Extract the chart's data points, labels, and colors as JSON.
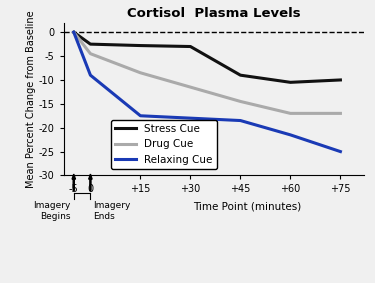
{
  "title": "Cortisol  Plasma Levels",
  "xlabel": "Time Point (minutes)",
  "ylabel": "Mean Percent Change from Baseline",
  "x_values": [
    -5,
    0,
    15,
    30,
    45,
    60,
    75
  ],
  "x_labels": [
    "-5",
    "0",
    "+15",
    "+30",
    "+45",
    "+60",
    "+75"
  ],
  "stress_cue": [
    0,
    -2.5,
    -2.8,
    -3.0,
    -9.0,
    -10.5,
    -10.0
  ],
  "drug_cue": [
    0,
    -4.5,
    -8.5,
    -11.5,
    -14.5,
    -17.0,
    -17.0
  ],
  "relaxing_cue": [
    0,
    -9.0,
    -17.5,
    -18.0,
    -18.5,
    -21.5,
    -25.0
  ],
  "stress_color": "#111111",
  "drug_color": "#aaaaaa",
  "relaxing_color": "#1a3ab5",
  "ylim": [
    -30,
    2
  ],
  "yticks": [
    0,
    -5,
    -10,
    -15,
    -20,
    -25,
    -30
  ],
  "legend_labels": [
    "Stress Cue",
    "Drug Cue",
    "Relaxing Cue"
  ],
  "annotation_begins": "Imagery\nBegins",
  "annotation_ends": "Imagery\nEnds",
  "background_color": "#f0f0f0"
}
